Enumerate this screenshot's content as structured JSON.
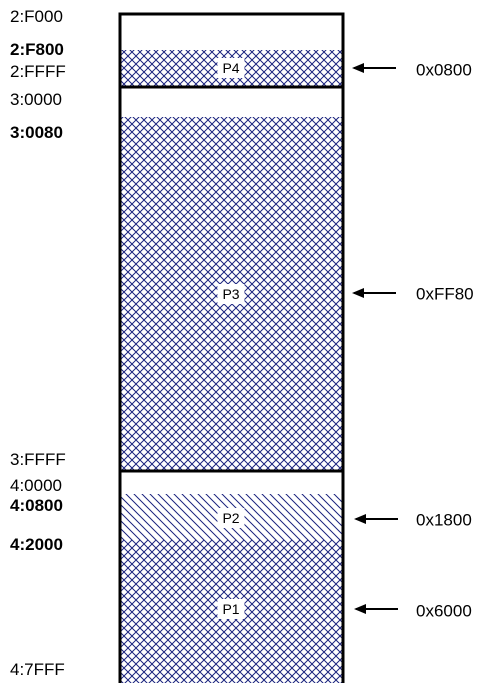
{
  "address_labels": {
    "a_2F000": "2:F000",
    "a_2F800": "2:F800",
    "a_2FFFF": "2:FFFF",
    "a_30000": "3:0000",
    "a_30080": "3:0080",
    "a_3FFFF": "3:FFFF",
    "a_40000": "4:0000",
    "a_40800": "4:0800",
    "a_42000": "4:2000",
    "a_47FFF": "4:7FFF"
  },
  "partitions": {
    "p4": {
      "label": "P4",
      "size": "0x0800",
      "pattern": "crosshatch"
    },
    "p3": {
      "label": "P3",
      "size": "0xFF80",
      "pattern": "crosshatch"
    },
    "p2": {
      "label": "P2",
      "size": "0x1800",
      "pattern": "diagonal"
    },
    "p1": {
      "label": "P1",
      "size": "0x6000",
      "pattern": "crosshatch"
    }
  },
  "colors": {
    "fill_pattern": "#1a237e",
    "border": "#000000",
    "background": "#ffffff"
  }
}
